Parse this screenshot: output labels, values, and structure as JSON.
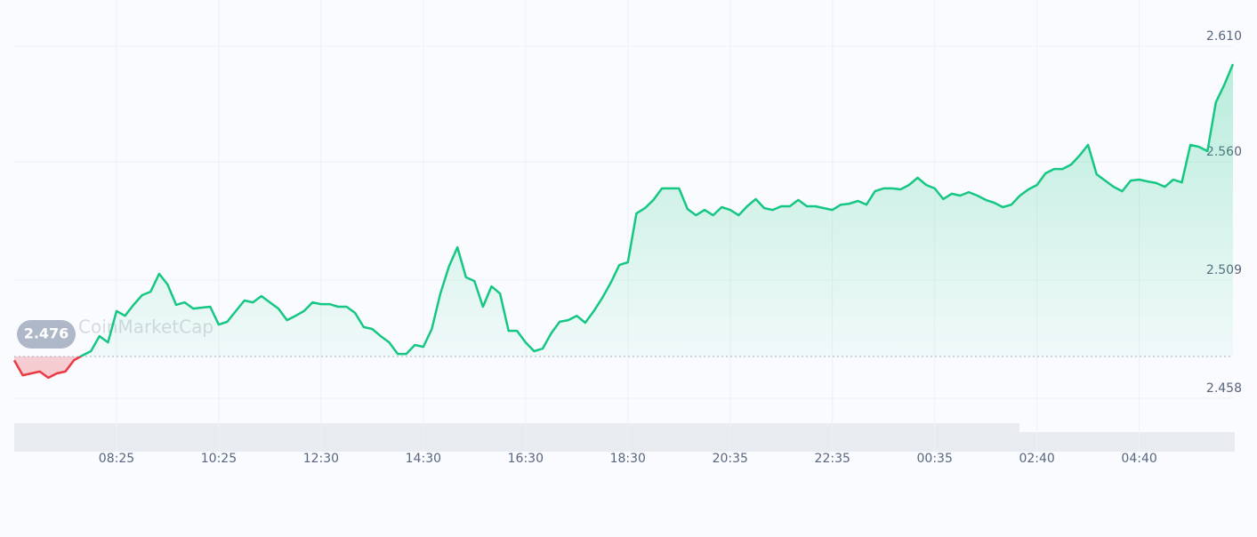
{
  "chart_data": {
    "type": "line",
    "watermark": "CoinMarketCap",
    "reference": 2.476,
    "colors": {
      "up": "#16c784",
      "down": "#ea3943"
    },
    "grid": true,
    "xlim": [
      0,
      143
    ],
    "ylim": [
      2.4495,
      2.6223
    ],
    "yticks": [
      2.458,
      2.509,
      {
        "value": 2.56,
        "label": "2.560"
      },
      {
        "value": 2.61,
        "label": "2.610"
      }
    ],
    "xticks": [
      {
        "value": 12,
        "label": "08:25"
      },
      {
        "value": 24,
        "label": "10:25"
      },
      {
        "value": 36,
        "label": "12:30"
      },
      {
        "value": 48,
        "label": "14:30"
      },
      {
        "value": 60,
        "label": "16:30"
      },
      {
        "value": 72,
        "label": "18:30"
      },
      {
        "value": 84,
        "label": "20:35"
      },
      {
        "value": 96,
        "label": "22:35"
      },
      {
        "value": 108,
        "label": "00:35"
      },
      {
        "value": 120,
        "label": "02:40"
      },
      {
        "value": 132,
        "label": "04:40"
      }
    ],
    "values": [
      2.4744,
      2.4679,
      2.4687,
      2.4695,
      2.4668,
      2.4687,
      2.4695,
      2.4744,
      2.4764,
      2.4783,
      2.4848,
      2.4821,
      2.4956,
      2.4936,
      2.4983,
      2.5025,
      2.504,
      2.5117,
      2.5071,
      2.4983,
      2.4994,
      2.4967,
      2.4971,
      2.4975,
      2.4898,
      2.491,
      2.4956,
      2.5002,
      2.4994,
      2.5021,
      2.4994,
      2.4967,
      2.4917,
      2.4936,
      2.4956,
      2.4994,
      2.4986,
      2.4986,
      2.4975,
      2.4975,
      2.4948,
      2.4887,
      2.4879,
      2.4848,
      2.4821,
      2.4771,
      2.4771,
      2.481,
      2.4802,
      2.4879,
      2.5032,
      2.5148,
      2.5232,
      2.5102,
      2.5086,
      2.4975,
      2.5063,
      2.5032,
      2.4871,
      2.4871,
      2.4821,
      2.4783,
      2.4794,
      2.486,
      2.491,
      2.4917,
      2.4936,
      2.4906,
      2.4956,
      2.5013,
      2.5079,
      2.5155,
      2.5167,
      2.5378,
      2.5401,
      2.5436,
      2.5486,
      2.5486,
      2.5486,
      2.5397,
      2.537,
      2.5393,
      2.537,
      2.5405,
      2.5393,
      2.537,
      2.5409,
      2.544,
      2.5401,
      2.5393,
      2.5409,
      2.5409,
      2.5436,
      2.5409,
      2.5409,
      2.5401,
      2.5393,
      2.5416,
      2.542,
      2.5432,
      2.5416,
      2.5474,
      2.5486,
      2.5486,
      2.5482,
      2.5501,
      2.5532,
      2.5501,
      2.5486,
      2.544,
      2.5463,
      2.5455,
      2.547,
      2.5455,
      2.5436,
      2.5424,
      2.5405,
      2.5416,
      2.5455,
      2.5482,
      2.5501,
      2.5551,
      2.557,
      2.557,
      2.5589,
      2.5628,
      2.5674,
      2.5547,
      2.552,
      2.5493,
      2.5474,
      2.552,
      2.5524,
      2.5516,
      2.5509,
      2.5493,
      2.5524,
      2.5512,
      2.5674,
      2.5666,
      2.5647,
      2.5858,
      2.5935,
      2.6023
    ]
  }
}
